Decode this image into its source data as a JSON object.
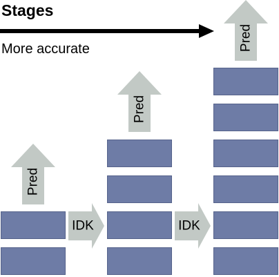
{
  "header": {
    "title": "Stages",
    "subtitle": "More accurate"
  },
  "colors": {
    "block_fill": "#6e7ca6",
    "arrow_fill": "#c2c9c5",
    "text": "#000000"
  },
  "stages": [
    {
      "block_count": 2,
      "pred_label": "Pred",
      "idk_label": "IDK"
    },
    {
      "block_count": 4,
      "pred_label": "Pred",
      "idk_label": "IDK"
    },
    {
      "block_count": 6,
      "pred_label": "Pred"
    }
  ]
}
